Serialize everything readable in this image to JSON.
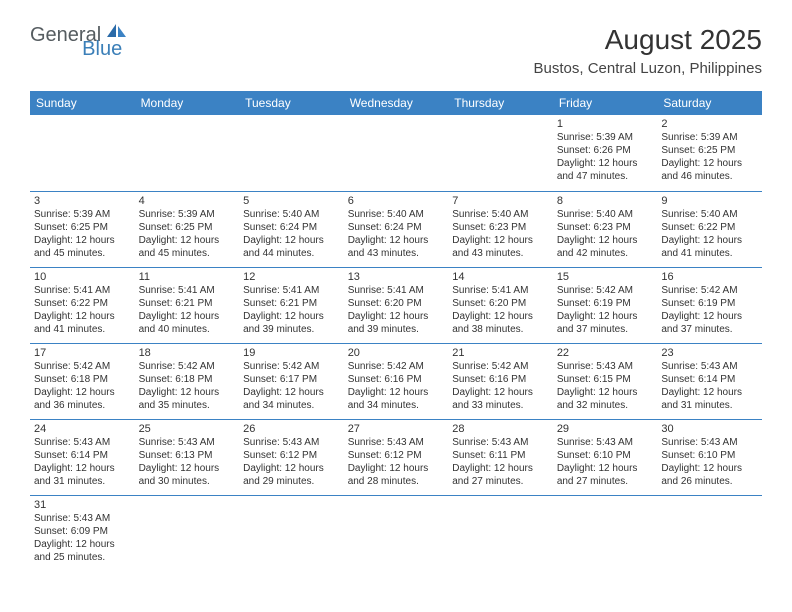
{
  "logo": {
    "general": "General",
    "blue": "Blue"
  },
  "title": "August 2025",
  "location": "Bustos, Central Luzon, Philippines",
  "colors": {
    "header_bg": "#3b82c4",
    "header_fg": "#ffffff",
    "border": "#3b82c4",
    "text": "#333333",
    "logo_gray": "#555c60",
    "logo_blue": "#3b7fb8"
  },
  "weekdays": [
    "Sunday",
    "Monday",
    "Tuesday",
    "Wednesday",
    "Thursday",
    "Friday",
    "Saturday"
  ],
  "weeks": [
    [
      null,
      null,
      null,
      null,
      null,
      {
        "n": "1",
        "sunrise": "5:39 AM",
        "sunset": "6:26 PM",
        "daylight": "12 hours and 47 minutes."
      },
      {
        "n": "2",
        "sunrise": "5:39 AM",
        "sunset": "6:25 PM",
        "daylight": "12 hours and 46 minutes."
      }
    ],
    [
      {
        "n": "3",
        "sunrise": "5:39 AM",
        "sunset": "6:25 PM",
        "daylight": "12 hours and 45 minutes."
      },
      {
        "n": "4",
        "sunrise": "5:39 AM",
        "sunset": "6:25 PM",
        "daylight": "12 hours and 45 minutes."
      },
      {
        "n": "5",
        "sunrise": "5:40 AM",
        "sunset": "6:24 PM",
        "daylight": "12 hours and 44 minutes."
      },
      {
        "n": "6",
        "sunrise": "5:40 AM",
        "sunset": "6:24 PM",
        "daylight": "12 hours and 43 minutes."
      },
      {
        "n": "7",
        "sunrise": "5:40 AM",
        "sunset": "6:23 PM",
        "daylight": "12 hours and 43 minutes."
      },
      {
        "n": "8",
        "sunrise": "5:40 AM",
        "sunset": "6:23 PM",
        "daylight": "12 hours and 42 minutes."
      },
      {
        "n": "9",
        "sunrise": "5:40 AM",
        "sunset": "6:22 PM",
        "daylight": "12 hours and 41 minutes."
      }
    ],
    [
      {
        "n": "10",
        "sunrise": "5:41 AM",
        "sunset": "6:22 PM",
        "daylight": "12 hours and 41 minutes."
      },
      {
        "n": "11",
        "sunrise": "5:41 AM",
        "sunset": "6:21 PM",
        "daylight": "12 hours and 40 minutes."
      },
      {
        "n": "12",
        "sunrise": "5:41 AM",
        "sunset": "6:21 PM",
        "daylight": "12 hours and 39 minutes."
      },
      {
        "n": "13",
        "sunrise": "5:41 AM",
        "sunset": "6:20 PM",
        "daylight": "12 hours and 39 minutes."
      },
      {
        "n": "14",
        "sunrise": "5:41 AM",
        "sunset": "6:20 PM",
        "daylight": "12 hours and 38 minutes."
      },
      {
        "n": "15",
        "sunrise": "5:42 AM",
        "sunset": "6:19 PM",
        "daylight": "12 hours and 37 minutes."
      },
      {
        "n": "16",
        "sunrise": "5:42 AM",
        "sunset": "6:19 PM",
        "daylight": "12 hours and 37 minutes."
      }
    ],
    [
      {
        "n": "17",
        "sunrise": "5:42 AM",
        "sunset": "6:18 PM",
        "daylight": "12 hours and 36 minutes."
      },
      {
        "n": "18",
        "sunrise": "5:42 AM",
        "sunset": "6:18 PM",
        "daylight": "12 hours and 35 minutes."
      },
      {
        "n": "19",
        "sunrise": "5:42 AM",
        "sunset": "6:17 PM",
        "daylight": "12 hours and 34 minutes."
      },
      {
        "n": "20",
        "sunrise": "5:42 AM",
        "sunset": "6:16 PM",
        "daylight": "12 hours and 34 minutes."
      },
      {
        "n": "21",
        "sunrise": "5:42 AM",
        "sunset": "6:16 PM",
        "daylight": "12 hours and 33 minutes."
      },
      {
        "n": "22",
        "sunrise": "5:43 AM",
        "sunset": "6:15 PM",
        "daylight": "12 hours and 32 minutes."
      },
      {
        "n": "23",
        "sunrise": "5:43 AM",
        "sunset": "6:14 PM",
        "daylight": "12 hours and 31 minutes."
      }
    ],
    [
      {
        "n": "24",
        "sunrise": "5:43 AM",
        "sunset": "6:14 PM",
        "daylight": "12 hours and 31 minutes."
      },
      {
        "n": "25",
        "sunrise": "5:43 AM",
        "sunset": "6:13 PM",
        "daylight": "12 hours and 30 minutes."
      },
      {
        "n": "26",
        "sunrise": "5:43 AM",
        "sunset": "6:12 PM",
        "daylight": "12 hours and 29 minutes."
      },
      {
        "n": "27",
        "sunrise": "5:43 AM",
        "sunset": "6:12 PM",
        "daylight": "12 hours and 28 minutes."
      },
      {
        "n": "28",
        "sunrise": "5:43 AM",
        "sunset": "6:11 PM",
        "daylight": "12 hours and 27 minutes."
      },
      {
        "n": "29",
        "sunrise": "5:43 AM",
        "sunset": "6:10 PM",
        "daylight": "12 hours and 27 minutes."
      },
      {
        "n": "30",
        "sunrise": "5:43 AM",
        "sunset": "6:10 PM",
        "daylight": "12 hours and 26 minutes."
      }
    ],
    [
      {
        "n": "31",
        "sunrise": "5:43 AM",
        "sunset": "6:09 PM",
        "daylight": "12 hours and 25 minutes."
      },
      null,
      null,
      null,
      null,
      null,
      null
    ]
  ],
  "labels": {
    "sunrise": "Sunrise:",
    "sunset": "Sunset:",
    "daylight": "Daylight:"
  }
}
